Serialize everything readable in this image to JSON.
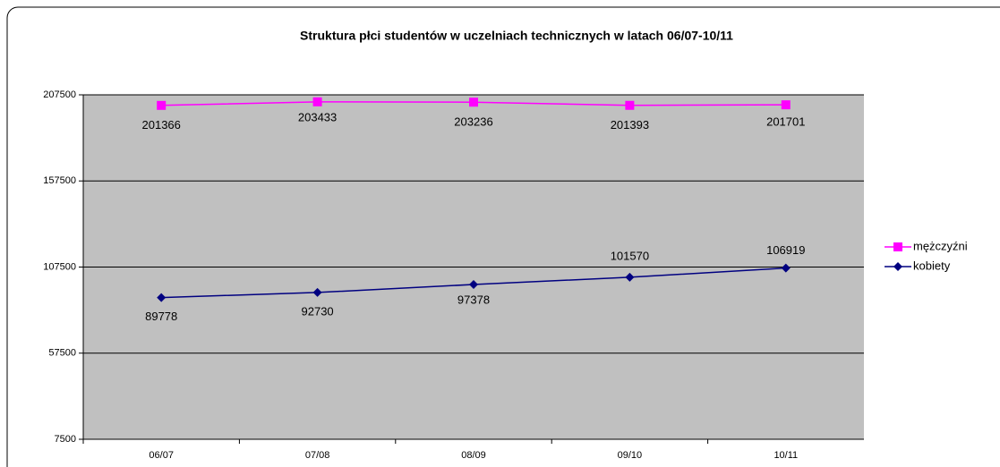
{
  "chart_data": {
    "type": "line",
    "title": "Struktura płci studentów w uczelniach technicznych  w latach 06/07-10/11",
    "categories": [
      "06/07",
      "07/08",
      "08/09",
      "09/10",
      "10/11"
    ],
    "series": [
      {
        "name": "mężczyźni",
        "color": "#ff00ff",
        "marker": "square",
        "values": [
          201366,
          203433,
          203236,
          201393,
          201701
        ]
      },
      {
        "name": "kobiety",
        "color": "#000080",
        "marker": "diamond",
        "values": [
          89778,
          92730,
          97378,
          101570,
          106919
        ]
      }
    ],
    "ylim": [
      7500,
      207500
    ],
    "yticks": [
      7500,
      57500,
      107500,
      157500,
      207500
    ],
    "grid": true,
    "legend": "right"
  }
}
